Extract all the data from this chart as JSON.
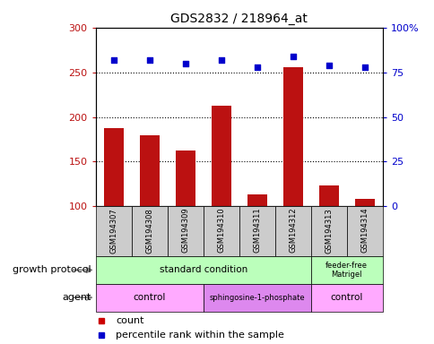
{
  "title": "GDS2832 / 218964_at",
  "samples": [
    "GSM194307",
    "GSM194308",
    "GSM194309",
    "GSM194310",
    "GSM194311",
    "GSM194312",
    "GSM194313",
    "GSM194314"
  ],
  "counts": [
    188,
    180,
    163,
    213,
    113,
    256,
    123,
    108
  ],
  "percentile_ranks": [
    82,
    82,
    80,
    82,
    78,
    84,
    79,
    78
  ],
  "ylim_left": [
    100,
    300
  ],
  "ylim_right": [
    0,
    100
  ],
  "bar_color": "#bb1111",
  "dot_color": "#0000cc",
  "background_color": "#ffffff",
  "sample_box_color": "#cccccc",
  "growth_standard_color": "#bbffbb",
  "growth_feeder_color": "#bbffbb",
  "agent_control_color": "#ffaaff",
  "agent_sphingo_color": "#dd88ee",
  "legend_count_color": "#cc0000",
  "legend_pct_color": "#0000cc"
}
